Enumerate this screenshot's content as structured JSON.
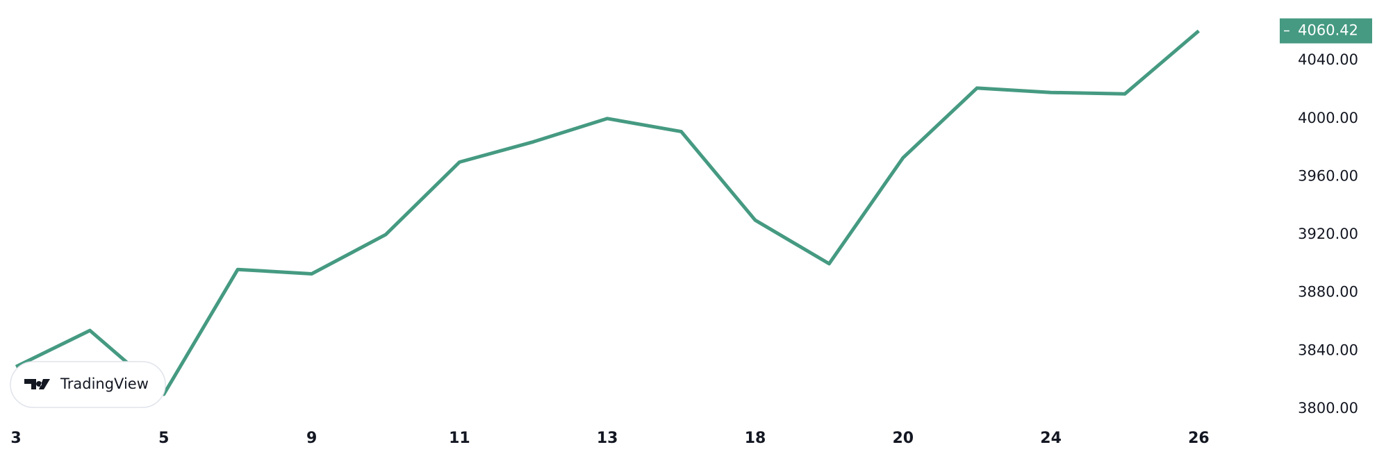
{
  "chart_data": {
    "type": "line",
    "categories": [
      "3",
      null,
      "5",
      null,
      "9",
      null,
      "11",
      null,
      "13",
      null,
      "18",
      null,
      "20",
      null,
      "24",
      null,
      "26"
    ],
    "values": [
      3829,
      3854,
      3810,
      3896,
      3893,
      3920,
      3970,
      3984,
      4000,
      3991,
      3930,
      3900,
      3973,
      4021,
      4018,
      4017,
      4060.42
    ],
    "color": "#459a81",
    "ylim": [
      3788.5,
      4081.7
    ],
    "yticks": [
      {
        "value": 3800,
        "label": "3800.00"
      },
      {
        "value": 3840,
        "label": "3840.00"
      },
      {
        "value": 3880,
        "label": "3880.00"
      },
      {
        "value": 3920,
        "label": "3920.00"
      },
      {
        "value": 3960,
        "label": "3960.00"
      },
      {
        "value": 4000,
        "label": "4000.00"
      },
      {
        "value": 4040,
        "label": "4040.00"
      }
    ],
    "grid": false,
    "watermark": "TradingView"
  }
}
